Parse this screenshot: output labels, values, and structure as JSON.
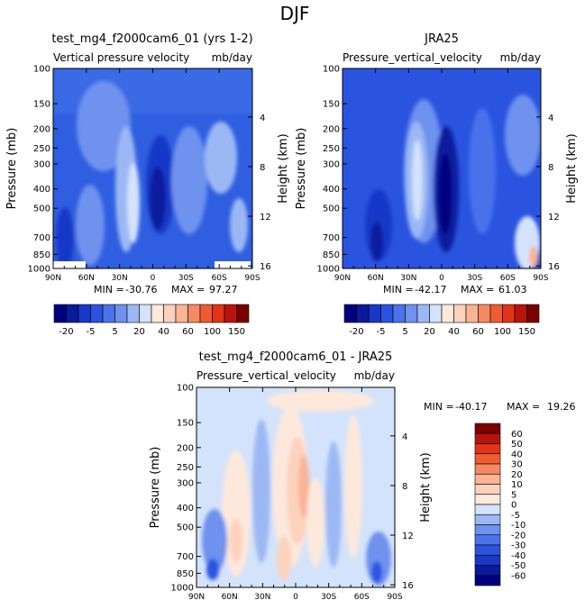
{
  "figure_title": "DJF",
  "colors": {
    "c20": "#00007f",
    "c15": "#0a1a9c",
    "c10": "#1838c8",
    "c7": "#2a54e0",
    "c5": "#4a72ea",
    "c3": "#6e92ee",
    "c1": "#9cb8f4",
    "c0": "#d3e3fb",
    "p1": "#fde8dc",
    "p2": "#fcd2bd",
    "p3": "#f9b494",
    "p4": "#f58a62",
    "p5": "#f05c32",
    "p6": "#e23417",
    "p7": "#b9140c",
    "p8": "#7a0000",
    "bg_blue": "#3b66e2"
  },
  "chart_data": [
    {
      "type": "heatmap",
      "name": "model",
      "title": "test_mg4_f2000cam6_01 (yrs 1-2)",
      "subtitle_left": "Vertical pressure velocity",
      "units": "mb/day",
      "xlabel": "",
      "ylabel": "Pressure (mb)",
      "ylabel_right": "Height (km)",
      "x_ticks": [
        "90N",
        "60N",
        "30N",
        "0",
        "30S",
        "60S",
        "90S"
      ],
      "y_ticks": [
        "100",
        "150",
        "200",
        "250",
        "300",
        "400",
        "500",
        "700",
        "850",
        "1000"
      ],
      "y_ticks_right": [
        "16",
        "12",
        "8",
        "4"
      ],
      "stats": {
        "min_label": "MIN =",
        "min": "-30.76",
        "max_label": "MAX =",
        "max": "97.27"
      }
    },
    {
      "type": "heatmap",
      "name": "obs",
      "title": "JRA25",
      "subtitle_left": "Pressure_vertical_velocity",
      "units": "mb/day",
      "xlabel": "",
      "ylabel": "Pressure (mb)",
      "ylabel_right": "Height (km)",
      "x_ticks": [
        "90N",
        "60N",
        "30N",
        "0",
        "30S",
        "60S",
        "90S"
      ],
      "y_ticks": [
        "100",
        "150",
        "200",
        "250",
        "300",
        "400",
        "500",
        "700",
        "850",
        "1000"
      ],
      "y_ticks_right": [
        "16",
        "12",
        "8",
        "4"
      ],
      "stats": {
        "min_label": "MIN =",
        "min": "-42.17",
        "max_label": "MAX =",
        "max": "61.03"
      }
    },
    {
      "type": "heatmap",
      "name": "diff",
      "title": "test_mg4_f2000cam6_01 - JRA25",
      "subtitle_left": "Pressure_vertical_velocity",
      "units": "mb/day",
      "xlabel": "",
      "ylabel": "Pressure (mb)",
      "ylabel_right": "Height (km)",
      "x_ticks": [
        "90N",
        "60N",
        "30N",
        "0",
        "30S",
        "60S",
        "90S"
      ],
      "y_ticks": [
        "100",
        "150",
        "200",
        "250",
        "300",
        "400",
        "500",
        "700",
        "850",
        "1000"
      ],
      "y_ticks_right": [
        "16",
        "12",
        "8",
        "4"
      ],
      "stats": {
        "min_label": "MIN =",
        "min": "-40.17",
        "max_label": "MAX =",
        "max": "19.26"
      }
    }
  ],
  "colorbar_main": {
    "orientation": "horizontal",
    "labels": [
      "-20",
      "-5",
      "5",
      "20",
      "40",
      "60",
      "100",
      "150"
    ],
    "bins": [
      "c20",
      "c15",
      "c10",
      "c7",
      "c5",
      "c3",
      "c1",
      "c0",
      "p1",
      "p2",
      "p3",
      "p4",
      "p5",
      "p6",
      "p7",
      "p8"
    ]
  },
  "colorbar_diff": {
    "orientation": "vertical",
    "labels": [
      "60",
      "50",
      "40",
      "30",
      "20",
      "10",
      "5",
      "0",
      "-5",
      "-10",
      "-20",
      "-30",
      "-40",
      "-50",
      "-60"
    ],
    "bins": [
      "p8",
      "p7",
      "p6",
      "p5",
      "p4",
      "p3",
      "p2",
      "p1",
      "c0",
      "c1",
      "c3",
      "c5",
      "c7",
      "c10",
      "c15",
      "c20"
    ]
  }
}
